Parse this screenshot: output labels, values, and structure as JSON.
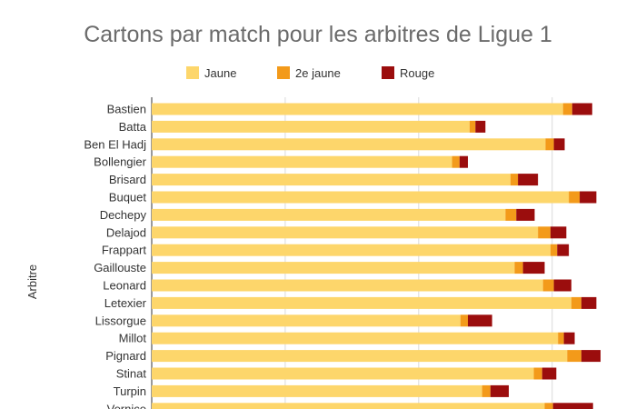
{
  "chart_data": {
    "type": "bar",
    "orientation": "horizontal",
    "stacked": true,
    "title": "Cartons par match pour les arbitres de Ligue 1",
    "ylabel": "Arbitre",
    "xlabel": "",
    "legend_position": "top",
    "grid": true,
    "xlim": [
      0,
      5.5
    ],
    "categories": [
      "Bastien",
      "Batta",
      "Ben El Hadj",
      "Bollengier",
      "Brisard",
      "Buquet",
      "Dechepy",
      "Delajod",
      "Frappart",
      "Gaillouste",
      "Leonard",
      "Letexier",
      "Lissorgue",
      "Millot",
      "Pignard",
      "Stinat",
      "Turpin",
      "Vernice"
    ],
    "series": [
      {
        "name": "Jaune",
        "color": "#FDD66B",
        "values": [
          4.93,
          3.81,
          4.72,
          3.6,
          4.3,
          5.0,
          4.24,
          4.63,
          4.78,
          4.35,
          4.69,
          5.03,
          3.7,
          4.87,
          4.98,
          4.58,
          3.96,
          4.71
        ]
      },
      {
        "name": "2e jaune",
        "color": "#F39A1A",
        "values": [
          0.11,
          0.07,
          0.1,
          0.09,
          0.09,
          0.13,
          0.13,
          0.15,
          0.08,
          0.1,
          0.13,
          0.12,
          0.09,
          0.07,
          0.17,
          0.1,
          0.1,
          0.1
        ]
      },
      {
        "name": "Rouge",
        "color": "#9B0D0D",
        "values": [
          0.24,
          0.12,
          0.13,
          0.1,
          0.24,
          0.2,
          0.22,
          0.19,
          0.14,
          0.26,
          0.21,
          0.18,
          0.29,
          0.13,
          0.23,
          0.17,
          0.22,
          0.48
        ]
      }
    ]
  }
}
